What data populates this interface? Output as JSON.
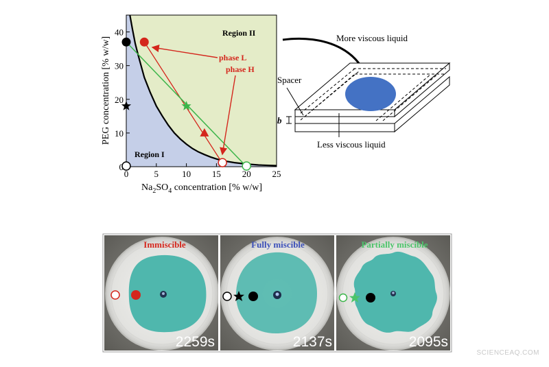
{
  "phase_diagram": {
    "y_axis_label": "PEG concentration [% w/w]",
    "x_axis_label_main": "Na",
    "x_axis_label_sub1": "2",
    "x_axis_label_mid": "SO",
    "x_axis_label_sub2": "4",
    "x_axis_label_end": " concentration [% w/w]",
    "x_ticks": [
      "0",
      "5",
      "10",
      "15",
      "20",
      "25"
    ],
    "y_ticks": [
      "0",
      "10",
      "20",
      "30",
      "40"
    ],
    "region1_label": "Region I",
    "region2_label": "Region II",
    "phase_l_label": "phase L",
    "phase_h_label": "phase H",
    "colors": {
      "region1": "#c5cfe8",
      "region2": "#e4ecc8",
      "tie_line": "#d4261c",
      "dilution_line": "#3cb54a",
      "binodal": "#000000"
    }
  },
  "chart_data": {
    "type": "scatter",
    "xlabel": "Na2SO4 concentration [% w/w]",
    "ylabel": "PEG concentration [% w/w]",
    "xlim": [
      0,
      25
    ],
    "ylim": [
      0,
      45
    ],
    "binodal_curve": {
      "x": [
        0.6,
        1.0,
        1.5,
        2.0,
        3.0,
        4.0,
        5.0,
        6.0,
        7.0,
        8.0,
        9.0,
        10.0,
        11.0,
        12.0,
        13.0,
        14.0,
        15.0,
        16.0,
        18.0,
        20.0,
        22.0,
        25.0
      ],
      "y": [
        45,
        41,
        36.5,
        33,
        26.5,
        22,
        18,
        15,
        12.3,
        10,
        8.2,
        6.7,
        5.4,
        4.4,
        3.6,
        2.9,
        2.3,
        1.8,
        1.2,
        0.8,
        0.5,
        0.3
      ]
    },
    "points": [
      {
        "name": "black circle",
        "x": 0,
        "y": 37,
        "marker": "filled-circle",
        "color": "#000000"
      },
      {
        "name": "black star",
        "x": 0,
        "y": 18,
        "marker": "star",
        "color": "#000000"
      },
      {
        "name": "open circle origin",
        "x": 0,
        "y": 0,
        "marker": "open-circle",
        "color": "#000000"
      },
      {
        "name": "phase L",
        "x": 3,
        "y": 37,
        "marker": "filled-circle",
        "color": "#d4261c"
      },
      {
        "name": "green star",
        "x": 10,
        "y": 18,
        "marker": "star",
        "color": "#3cb54a"
      },
      {
        "name": "red triangle",
        "x": 13,
        "y": 10,
        "marker": "triangle",
        "color": "#d4261c"
      },
      {
        "name": "phase H",
        "x": 16,
        "y": 1,
        "marker": "open-circle",
        "color": "#d4261c"
      },
      {
        "name": "green open circle",
        "x": 20,
        "y": 0,
        "marker": "open-circle",
        "color": "#3cb54a"
      }
    ],
    "tie_line": {
      "x": [
        3,
        16
      ],
      "y": [
        37,
        1
      ]
    },
    "dilution_line": {
      "x": [
        0,
        20
      ],
      "y": [
        37,
        0
      ]
    }
  },
  "hele_shaw": {
    "more_viscous_label": "More viscous liquid",
    "less_viscous_label": "Less viscous liquid",
    "spacer_label": "Spacer",
    "gap_label": "b",
    "drop_color": "#4472c4"
  },
  "photos": {
    "panels": [
      {
        "title": "Immiscible",
        "title_color": "#d4261c",
        "time": "2259s"
      },
      {
        "title": "Fully miscible",
        "title_color": "#3b4fb8",
        "time": "2137s"
      },
      {
        "title": "Partially miscible",
        "title_color": "#4cc46a",
        "time": "2095s"
      }
    ],
    "dye_color": "#4fb7ad"
  },
  "watermark": "SCIENCEAQ.COM"
}
